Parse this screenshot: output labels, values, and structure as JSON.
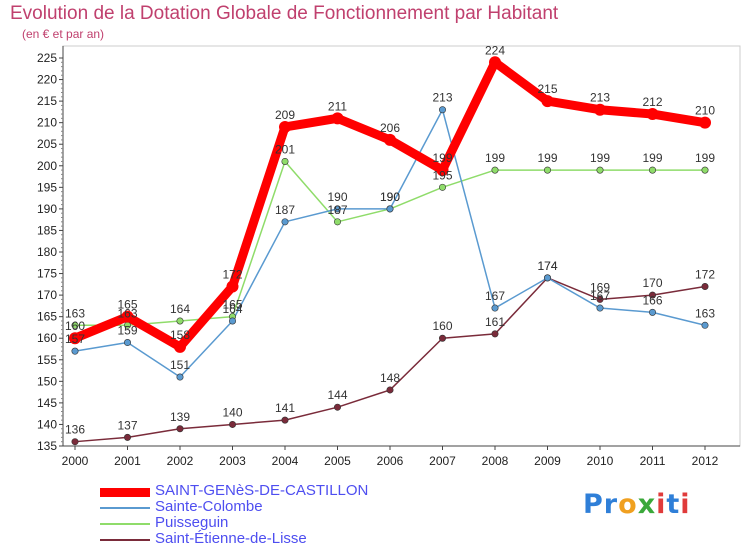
{
  "title": "Evolution de la Dotation Globale de Fonctionnement par Habitant",
  "subtitle": "(en € et par an)",
  "logo": {
    "text": "Proxiti",
    "letters": [
      {
        "ch": "P",
        "color": "#2f7fd8"
      },
      {
        "ch": "r",
        "color": "#2f7fd8"
      },
      {
        "ch": "o",
        "color": "#f0a020"
      },
      {
        "ch": "x",
        "color": "#3aa83a"
      },
      {
        "ch": "i",
        "color": "#e03b3b"
      },
      {
        "ch": "t",
        "color": "#2f7fd8"
      },
      {
        "ch": "i",
        "color": "#e03b3b"
      }
    ]
  },
  "chart_data": {
    "type": "line",
    "x": [
      2000,
      2001,
      2002,
      2003,
      2004,
      2005,
      2006,
      2007,
      2008,
      2009,
      2010,
      2011,
      2012
    ],
    "ylim": [
      135,
      225
    ],
    "ytick_step": 5,
    "grid": false,
    "legend_position": "bottom-left",
    "series": [
      {
        "name": "SAINT-GENèS-DE-CASTILLON",
        "color": "#ff0000",
        "emphasis": true,
        "values": [
          160,
          165,
          158,
          172,
          209,
          211,
          206,
          199,
          224,
          215,
          213,
          212,
          210
        ]
      },
      {
        "name": "Sainte-Colombe",
        "color": "#5a9ad0",
        "values": [
          157,
          159,
          151,
          164,
          187,
          190,
          190,
          213,
          167,
          174,
          167,
          166,
          163
        ]
      },
      {
        "name": "Puisseguin",
        "color": "#8fdc6a",
        "values": [
          163,
          163,
          164,
          165,
          201,
          187,
          190,
          195,
          199,
          199,
          199,
          199,
          199
        ]
      },
      {
        "name": "Saint-Étienne-de-Lisse",
        "color": "#7a2b3a",
        "values": [
          136,
          137,
          139,
          140,
          141,
          144,
          148,
          160,
          161,
          174,
          169,
          170,
          172
        ]
      }
    ]
  }
}
